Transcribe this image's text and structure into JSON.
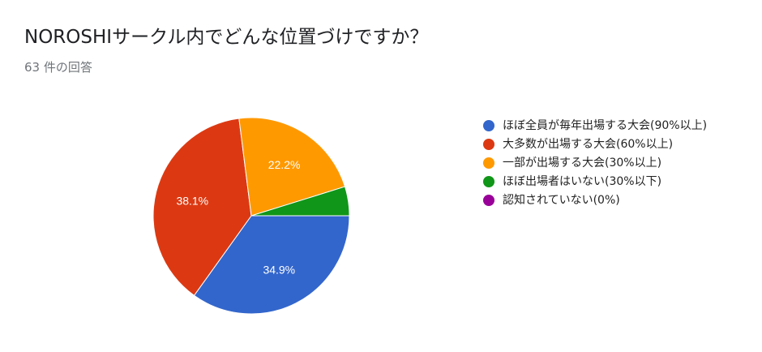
{
  "header": {
    "title": "NOROSHIサークル内でどんな位置づけですか？",
    "subtitle": "63 件の回答"
  },
  "chart_data": {
    "type": "pie",
    "title": "NOROSHIサークル内でどんな位置づけですか？",
    "subtitle": "63 件の回答",
    "legend_position": "right",
    "slices": [
      {
        "label": "ほぼ全員が毎年出場する大会(90%以上)",
        "percent": 34.9,
        "color": "#3366cc"
      },
      {
        "label": "大多数が出場する大会(60%以上)",
        "percent": 38.1,
        "color": "#dc3912"
      },
      {
        "label": "一部が出場する大会(30%以上)",
        "percent": 22.2,
        "color": "#ff9900"
      },
      {
        "label": "ほぼ出場者はいない(30%以下)",
        "percent": 4.8,
        "color": "#109618"
      },
      {
        "label": "認知されていない(0%)",
        "percent": 0,
        "color": "#990099"
      }
    ],
    "data_labels": [
      "34.9%",
      "38.1%",
      "22.2%",
      "",
      ""
    ]
  }
}
